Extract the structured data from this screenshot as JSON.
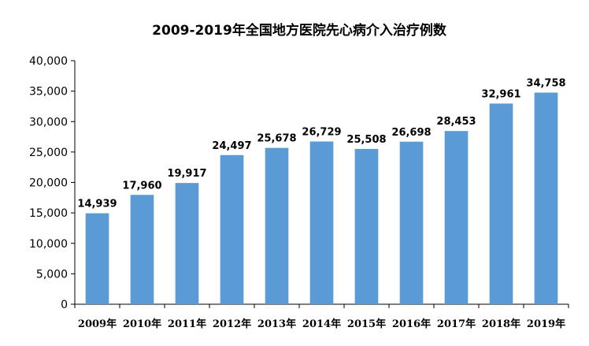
{
  "chart_data": {
    "type": "bar",
    "title": "2009-2019年全国地方医院先心病介入治疗例数",
    "xlabel": "",
    "ylabel": "",
    "categories": [
      "2009年",
      "2010年",
      "2011年",
      "2012年",
      "2013年",
      "2014年",
      "2015年",
      "2016年",
      "2017年",
      "2018年",
      "2019年"
    ],
    "values": [
      14939,
      17960,
      19917,
      24497,
      25678,
      26729,
      25508,
      26698,
      28453,
      32961,
      34758
    ],
    "data_labels": [
      "14,939",
      "17,960",
      "19,917",
      "24,497",
      "25,678",
      "26,729",
      "25,508",
      "26,698",
      "28,453",
      "32,961",
      "34,758"
    ],
    "ylim": [
      0,
      40000
    ],
    "yticks": [
      0,
      5000,
      10000,
      15000,
      20000,
      25000,
      30000,
      35000,
      40000
    ],
    "ytick_labels": [
      "0",
      "5,000",
      "10,000",
      "15,000",
      "20,000",
      "25,000",
      "30,000",
      "35,000",
      "40,000"
    ],
    "bar_color": "#5b9bd5",
    "grid": false,
    "legend": "none"
  }
}
